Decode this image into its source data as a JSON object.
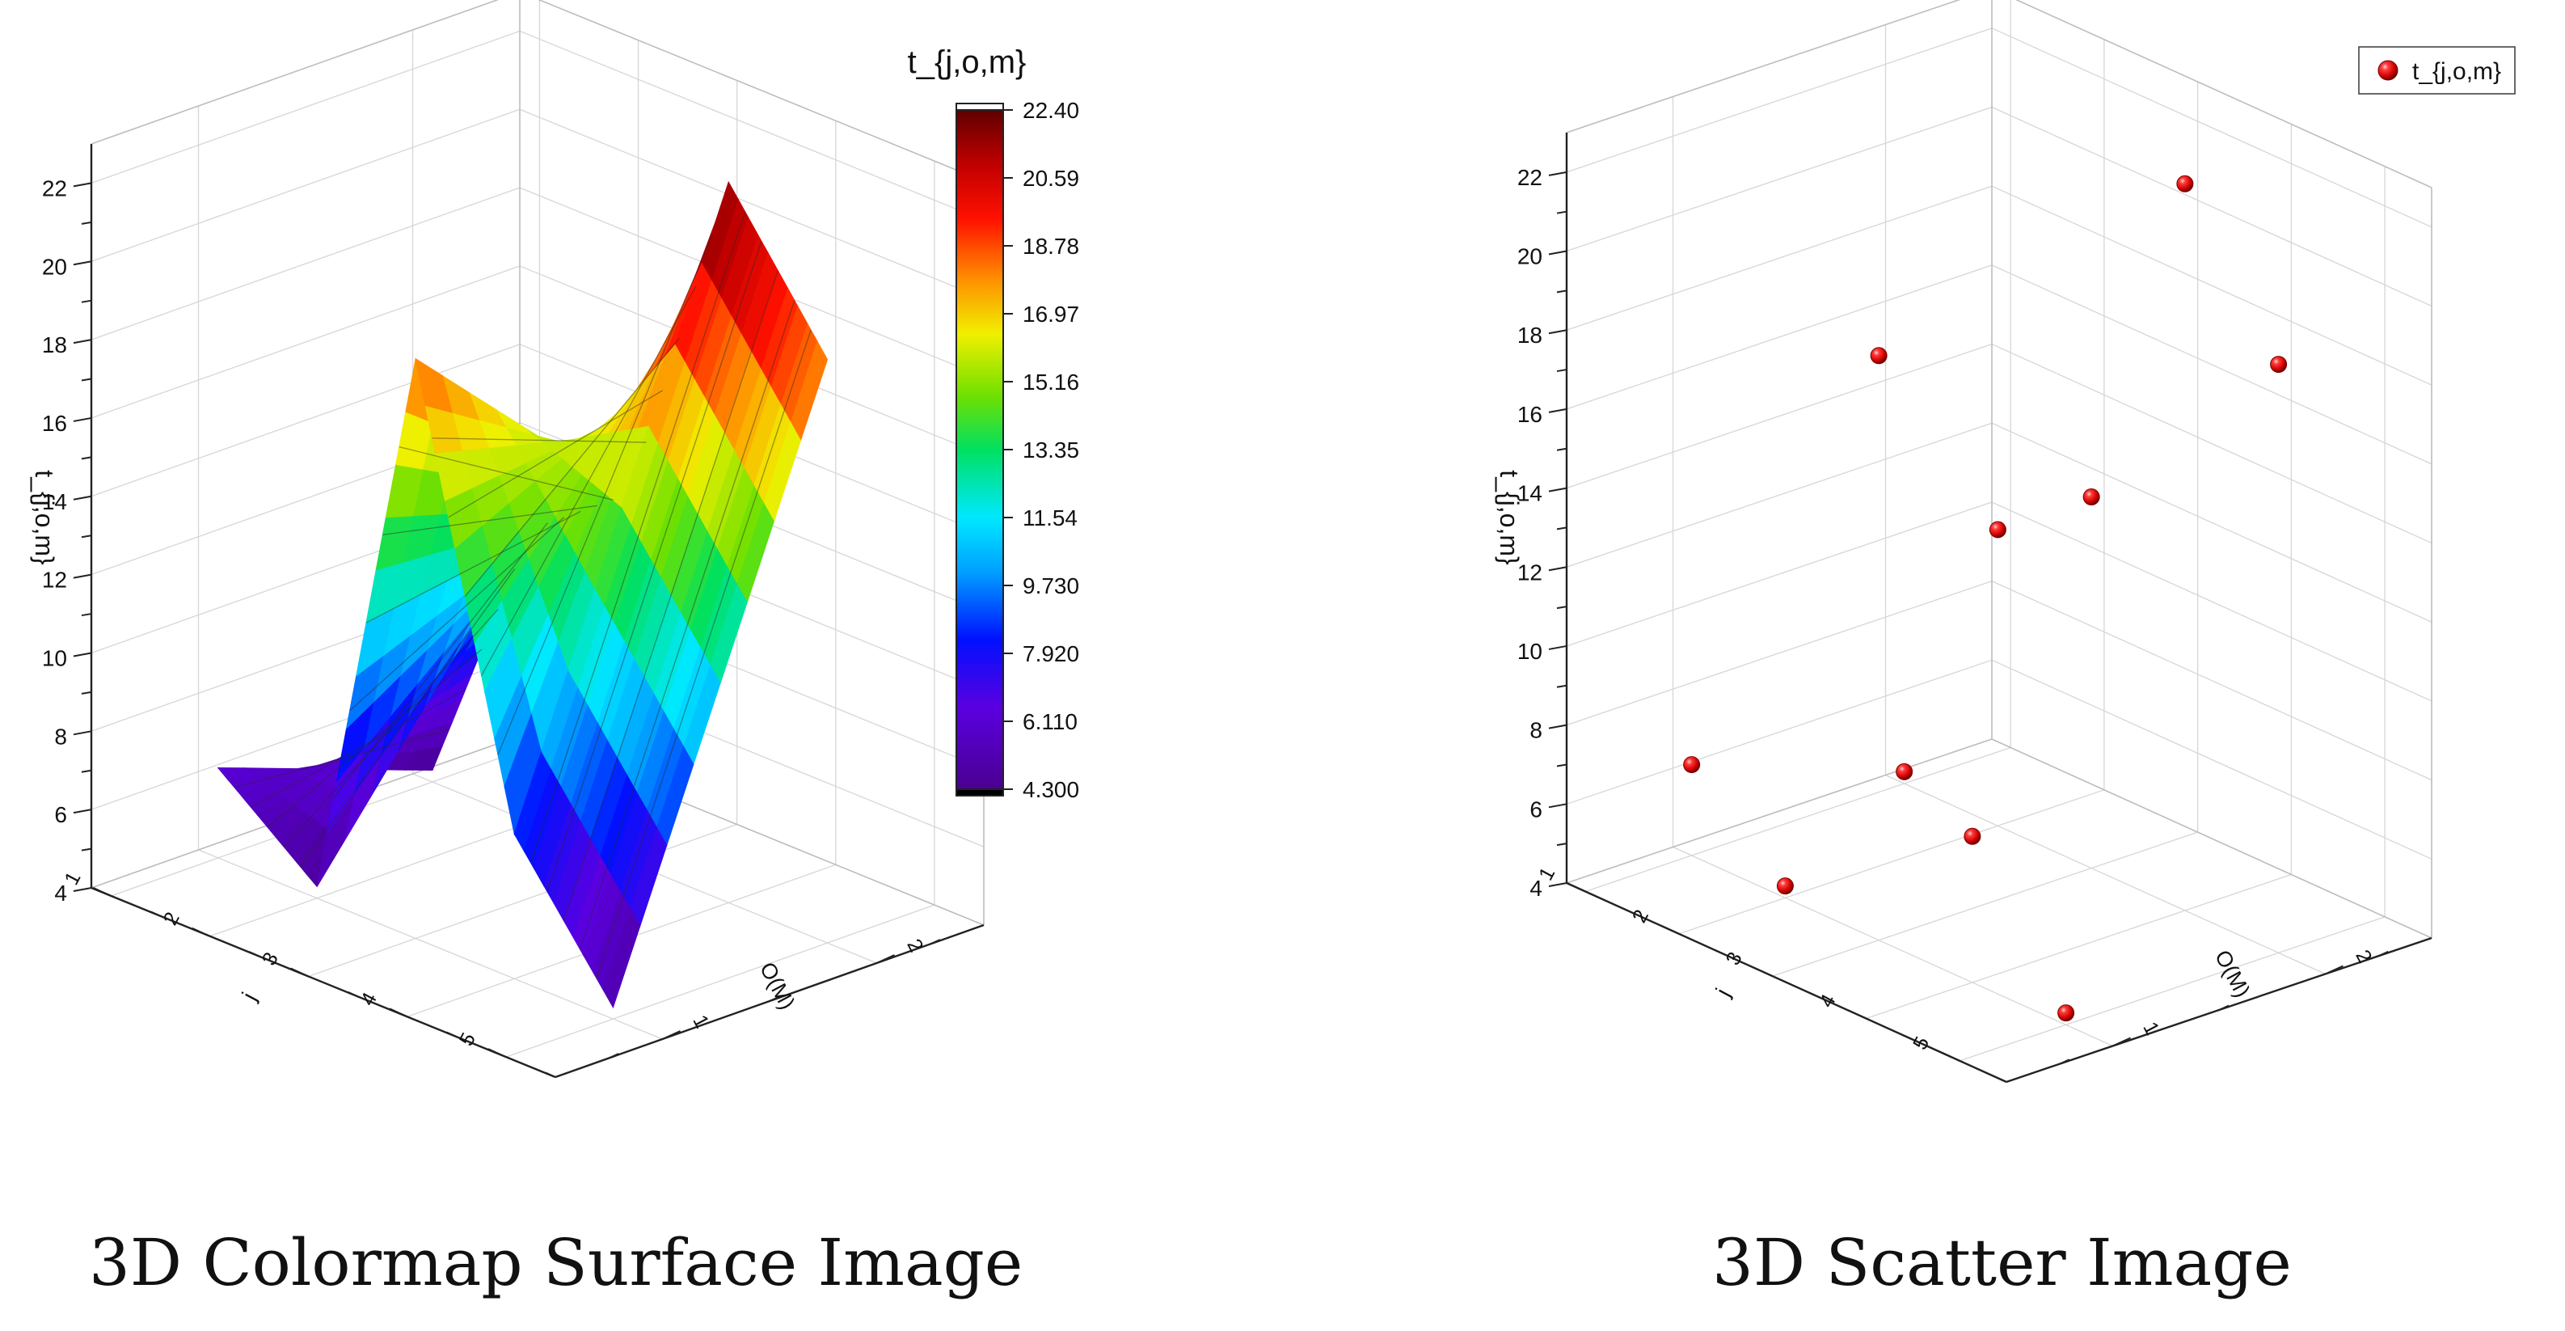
{
  "chart_data": [
    {
      "type": "surface",
      "caption": "3D Colormap Surface Image",
      "xlabel": "j",
      "ylabel": "O(M)",
      "zlabel": "t_{j,o,m}",
      "x_ticks": [
        "1",
        "2",
        "3",
        "4",
        "5"
      ],
      "y_ticks": [
        "1",
        "2"
      ],
      "z_ticks": [
        "4",
        "6",
        "8",
        "10",
        "12",
        "14",
        "16",
        "18",
        "20",
        "22"
      ],
      "xlim": [
        0.8,
        5.5
      ],
      "ylim": [
        0.5,
        2.5
      ],
      "zlim": [
        4,
        23
      ],
      "grid": true,
      "y_values": [
        1,
        2
      ],
      "rows": [
        {
          "x": 1,
          "z": [
            6.3,
            4.3
          ]
        },
        {
          "x": 2,
          "z": [
            4.3,
            11.5
          ]
        },
        {
          "x": 3,
          "z": [
            18.8,
            13.4
          ]
        },
        {
          "x": 4,
          "z": [
            7.7,
            22.4
          ]
        },
        {
          "x": 5,
          "z": [
            4.3,
            18.9
          ]
        }
      ],
      "colorbar": {
        "title": "t_{j,o,m}",
        "min": 4.3,
        "max": 22.4,
        "ticks": [
          "22.40",
          "20.59",
          "18.78",
          "16.97",
          "15.16",
          "13.35",
          "11.54",
          "9.730",
          "7.920",
          "6.110",
          "4.300"
        ]
      }
    },
    {
      "type": "scatter3d",
      "caption": "3D Scatter Image",
      "xlabel": "j",
      "ylabel": "O(M)",
      "zlabel": "t_{j,o,m}",
      "x_ticks": [
        "1",
        "2",
        "3",
        "4",
        "5"
      ],
      "y_ticks": [
        "1",
        "2"
      ],
      "z_ticks": [
        "4",
        "6",
        "8",
        "10",
        "12",
        "14",
        "16",
        "18",
        "20",
        "22"
      ],
      "xlim": [
        0.8,
        5.5
      ],
      "ylim": [
        0.5,
        2.5
      ],
      "zlim": [
        4,
        23
      ],
      "grid": true,
      "legend": {
        "position": "top-right",
        "entries": [
          "t_{j,o,m}"
        ]
      },
      "marker_color": "#d40000",
      "points": [
        {
          "x": 1,
          "y": 1,
          "z": 6.3
        },
        {
          "x": 1,
          "y": 2,
          "z": 4.3
        },
        {
          "x": 2,
          "y": 1,
          "z": 4.3
        },
        {
          "x": 2,
          "y": 2,
          "z": 11.5
        },
        {
          "x": 3,
          "y": 1,
          "z": 18.8
        },
        {
          "x": 3,
          "y": 2,
          "z": 13.4
        },
        {
          "x": 4,
          "y": 1,
          "z": 7.7
        },
        {
          "x": 4,
          "y": 2,
          "z": 22.4
        },
        {
          "x": 5,
          "y": 1,
          "z": 4.3
        },
        {
          "x": 5,
          "y": 2,
          "z": 18.9
        }
      ]
    }
  ]
}
